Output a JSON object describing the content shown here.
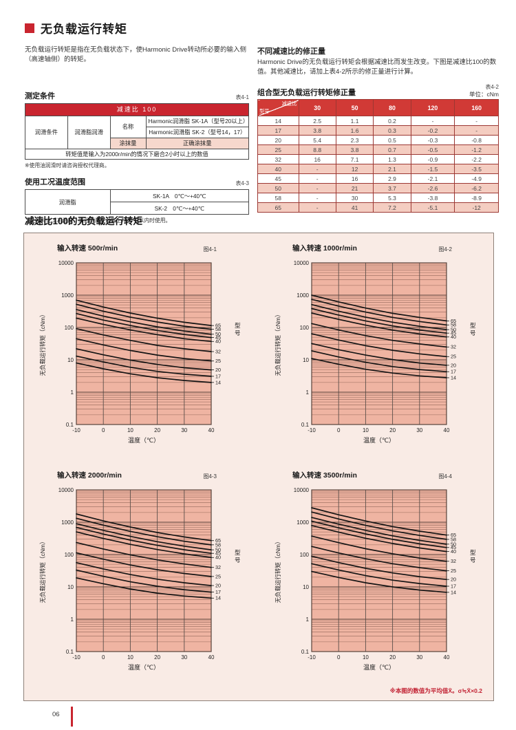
{
  "page": {
    "number": "06",
    "title": "无负载运行转矩",
    "intro": "无负载运行转矩是指在无负载状态下，使Harmonic Drive转动所必要的输入侧（高速轴侧）的转矩。"
  },
  "colors": {
    "accent_red": "#c9252f",
    "table_header_red": "#d13a36",
    "row_pink": "#f4cdc1",
    "cell_pink": "#f6d8cd",
    "panel_bg": "#f9ebe5",
    "plot_bg": "#efb4a2",
    "grid_major": "#58423b",
    "grid_minor": "#95685a",
    "grid_vertical": "#5a4f4a",
    "curve": "#141414",
    "note_red": "#c22233"
  },
  "measurement": {
    "heading": "测定条件",
    "table_label": "表4-1",
    "header": "减速比 100",
    "rows": {
      "condition": "润滑条件",
      "grease": "润滑脂润滑",
      "name_label": "名称",
      "name1": "Harmonic润滑脂 SK-1A（型号20以上）",
      "name2": "Harmonic润滑脂 SK-2（型号14，17）",
      "amount_label": "涂抹量",
      "amount_value": "正确涂抹量",
      "footer": "转矩值是输入为2000r/min的情况下磨合2小时以上的数值"
    },
    "note": "※使用油润滑时请咨询授权代理商。"
  },
  "temperature": {
    "heading": "使用工况温度范围",
    "table_label": "表4-3",
    "row_label": "润滑脂",
    "row1": "SK-1A　0℃～+40℃",
    "row2": "SK-2　0℃～+40℃",
    "note": "（注）对比工况温度，高温侧请在温度上升40℃以内时使用。"
  },
  "correction": {
    "heading": "不同减速比的修正量",
    "body": "Harmonic Drive的无负载运行转矩会根据减速比而发生改变。下图是减速比100的数值。其他减速比，请加上表4-2所示的修正量进行计算。",
    "table_title": "组合型无负载运行转矩修正量",
    "table_label": "表4-2",
    "unit": "单位：cNm",
    "diag_top": "减速比",
    "diag_bottom": "型号",
    "columns": [
      "30",
      "50",
      "80",
      "120",
      "160"
    ],
    "rows": [
      {
        "model": "14",
        "values": [
          "2.5",
          "1.1",
          "0.2",
          "-",
          "-"
        ]
      },
      {
        "model": "17",
        "values": [
          "3.8",
          "1.6",
          "0.3",
          "-0.2",
          "-"
        ]
      },
      {
        "model": "20",
        "values": [
          "5.4",
          "2.3",
          "0.5",
          "-0.3",
          "-0.8"
        ]
      },
      {
        "model": "25",
        "values": [
          "8.8",
          "3.8",
          "0.7",
          "-0.5",
          "-1.2"
        ]
      },
      {
        "model": "32",
        "values": [
          "16",
          "7.1",
          "1.3",
          "-0.9",
          "-2.2"
        ]
      },
      {
        "model": "40",
        "values": [
          "-",
          "12",
          "2.1",
          "-1.5",
          "-3.5"
        ]
      },
      {
        "model": "45",
        "values": [
          "-",
          "16",
          "2.9",
          "-2.1",
          "-4.9"
        ]
      },
      {
        "model": "50",
        "values": [
          "-",
          "21",
          "3.7",
          "-2.6",
          "-6.2"
        ]
      },
      {
        "model": "58",
        "values": [
          "-",
          "30",
          "5.3",
          "-3.8",
          "-8.9"
        ]
      },
      {
        "model": "65",
        "values": [
          "-",
          "41",
          "7.2",
          "-5.1",
          "-12"
        ]
      }
    ]
  },
  "charts_section": {
    "heading": "减速比100的无负载运行转矩",
    "note": "※本图的数值为平均值X̄。σ≒X̄×0.2"
  },
  "chart_data": [
    {
      "type": "line",
      "title": "输入转速 500r/min",
      "fig_label": "图4-1",
      "xlabel": "温度（℃）",
      "ylabel": "无负载运行转矩（cNm）",
      "right_label": "型号",
      "x": [
        -10,
        0,
        10,
        20,
        30,
        40
      ],
      "x_ticks": [
        -10,
        0,
        10,
        20,
        30,
        40
      ],
      "xlim": [
        -10,
        40
      ],
      "ylim_log": [
        0.1,
        10000
      ],
      "y_ticks": [
        10000,
        1000,
        100,
        10,
        1,
        0.1
      ],
      "grid": "log",
      "series": [
        {
          "name": "65",
          "values": [
            700,
            430,
            280,
            195,
            145,
            115
          ]
        },
        {
          "name": "58",
          "values": [
            520,
            320,
            210,
            148,
            110,
            88
          ]
        },
        {
          "name": "50",
          "values": [
            360,
            225,
            150,
            105,
            78,
            62
          ]
        },
        {
          "name": "45",
          "values": [
            270,
            170,
            115,
            81,
            61,
            49
          ]
        },
        {
          "name": "40",
          "values": [
            195,
            125,
            84,
            60,
            45,
            37
          ]
        },
        {
          "name": "32",
          "values": [
            92,
            59,
            40,
            28,
            22,
            18
          ]
        },
        {
          "name": "25",
          "values": [
            45,
            29,
            19.5,
            14,
            11,
            9.2
          ]
        },
        {
          "name": "20",
          "values": [
            22,
            14.3,
            9.8,
            7.2,
            5.7,
            4.9
          ]
        },
        {
          "name": "17",
          "values": [
            13,
            8.6,
            5.9,
            4.4,
            3.6,
            3.1
          ]
        },
        {
          "name": "14",
          "values": [
            8,
            5.3,
            3.7,
            2.8,
            2.3,
            2.0
          ]
        }
      ]
    },
    {
      "type": "line",
      "title": "输入转速 1000r/min",
      "fig_label": "图4-2",
      "xlabel": "温度（℃）",
      "ylabel": "无负载运行转矩（cNm）",
      "right_label": "型号",
      "x": [
        -10,
        0,
        10,
        20,
        30,
        40
      ],
      "x_ticks": [
        -10,
        0,
        10,
        20,
        30,
        40
      ],
      "xlim": [
        -10,
        40
      ],
      "ylim_log": [
        0.1,
        10000
      ],
      "y_ticks": [
        10000,
        1000,
        100,
        10,
        1,
        0.1
      ],
      "grid": "log",
      "series": [
        {
          "name": "65",
          "values": [
            1000,
            620,
            400,
            275,
            205,
            160
          ]
        },
        {
          "name": "58",
          "values": [
            740,
            460,
            300,
            205,
            153,
            120
          ]
        },
        {
          "name": "50",
          "values": [
            510,
            320,
            210,
            146,
            109,
            86
          ]
        },
        {
          "name": "45",
          "values": [
            385,
            243,
            160,
            112,
            84,
            67
          ]
        },
        {
          "name": "40",
          "values": [
            280,
            178,
            118,
            83,
            63,
            51
          ]
        },
        {
          "name": "32",
          "values": [
            132,
            84,
            56,
            40,
            31,
            25
          ]
        },
        {
          "name": "25",
          "values": [
            64,
            41,
            27.5,
            19.8,
            15.3,
            12.6
          ]
        },
        {
          "name": "20",
          "values": [
            32,
            20.5,
            14,
            10.2,
            8,
            6.8
          ]
        },
        {
          "name": "17",
          "values": [
            19,
            12.3,
            8.4,
            6.2,
            5,
            4.3
          ]
        },
        {
          "name": "14",
          "values": [
            11,
            7.3,
            5.1,
            3.9,
            3.2,
            2.8
          ]
        }
      ]
    },
    {
      "type": "line",
      "title": "输入转速 2000r/min",
      "fig_label": "图4-3",
      "xlabel": "温度（℃）",
      "ylabel": "无负载运行转矩（cNm）",
      "right_label": "型号",
      "x": [
        -10,
        0,
        10,
        20,
        30,
        40
      ],
      "x_ticks": [
        -10,
        0,
        10,
        20,
        30,
        40
      ],
      "xlim": [
        -10,
        40
      ],
      "ylim_log": [
        0.1,
        10000
      ],
      "y_ticks": [
        10000,
        1000,
        100,
        10,
        1,
        0.1
      ],
      "grid": "log",
      "series": [
        {
          "name": "65",
          "values": [
            1800,
            1100,
            710,
            480,
            350,
            270
          ]
        },
        {
          "name": "58",
          "values": [
            1320,
            810,
            520,
            355,
            258,
            200
          ]
        },
        {
          "name": "50",
          "values": [
            900,
            560,
            365,
            250,
            182,
            140
          ]
        },
        {
          "name": "45",
          "values": [
            690,
            430,
            280,
            193,
            141,
            109
          ]
        },
        {
          "name": "40",
          "values": [
            500,
            315,
            206,
            143,
            105,
            81
          ]
        },
        {
          "name": "32",
          "values": [
            235,
            149,
            98,
            68.5,
            51,
            40
          ]
        },
        {
          "name": "25",
          "values": [
            113,
            72,
            47.5,
            34,
            26,
            21
          ]
        },
        {
          "name": "20",
          "values": [
            56,
            36,
            24,
            17.3,
            13.4,
            11
          ]
        },
        {
          "name": "17",
          "values": [
            33,
            21.3,
            14.4,
            10.5,
            8.2,
            6.9
          ]
        },
        {
          "name": "14",
          "values": [
            19,
            12.5,
            8.6,
            6.4,
            5.2,
            4.5
          ]
        }
      ]
    },
    {
      "type": "line",
      "title": "输入转速 3500r/min",
      "fig_label": "图4-4",
      "xlabel": "温度（℃）",
      "ylabel": "无负载运行转矩（cNm）",
      "right_label": "型号",
      "x": [
        -10,
        0,
        10,
        20,
        30,
        40
      ],
      "x_ticks": [
        -10,
        0,
        10,
        20,
        30,
        40
      ],
      "xlim": [
        -10,
        40
      ],
      "ylim_log": [
        0.1,
        10000
      ],
      "y_ticks": [
        10000,
        1000,
        100,
        10,
        1,
        0.1
      ],
      "grid": "log",
      "series": [
        {
          "name": "65",
          "values": [
            2800,
            1700,
            1090,
            730,
            530,
            400
          ]
        },
        {
          "name": "58",
          "values": [
            2060,
            1260,
            800,
            540,
            390,
            295
          ]
        },
        {
          "name": "50",
          "values": [
            1400,
            870,
            560,
            380,
            275,
            210
          ]
        },
        {
          "name": "45",
          "values": [
            1080,
            670,
            435,
            295,
            215,
            165
          ]
        },
        {
          "name": "40",
          "values": [
            790,
            495,
            320,
            220,
            160,
            124
          ]
        },
        {
          "name": "32",
          "values": [
            372,
            233,
            152,
            106,
            78,
            62
          ]
        },
        {
          "name": "25",
          "values": [
            178,
            112,
            74,
            52,
            39.5,
            31.5
          ]
        },
        {
          "name": "20",
          "values": [
            89,
            56.5,
            37.5,
            27,
            20.7,
            17
          ]
        },
        {
          "name": "17",
          "values": [
            52,
            33.3,
            22.3,
            16.2,
            12.7,
            10.5
          ]
        },
        {
          "name": "14",
          "values": [
            30,
            19.6,
            13.4,
            10,
            8,
            6.8
          ]
        }
      ]
    }
  ]
}
